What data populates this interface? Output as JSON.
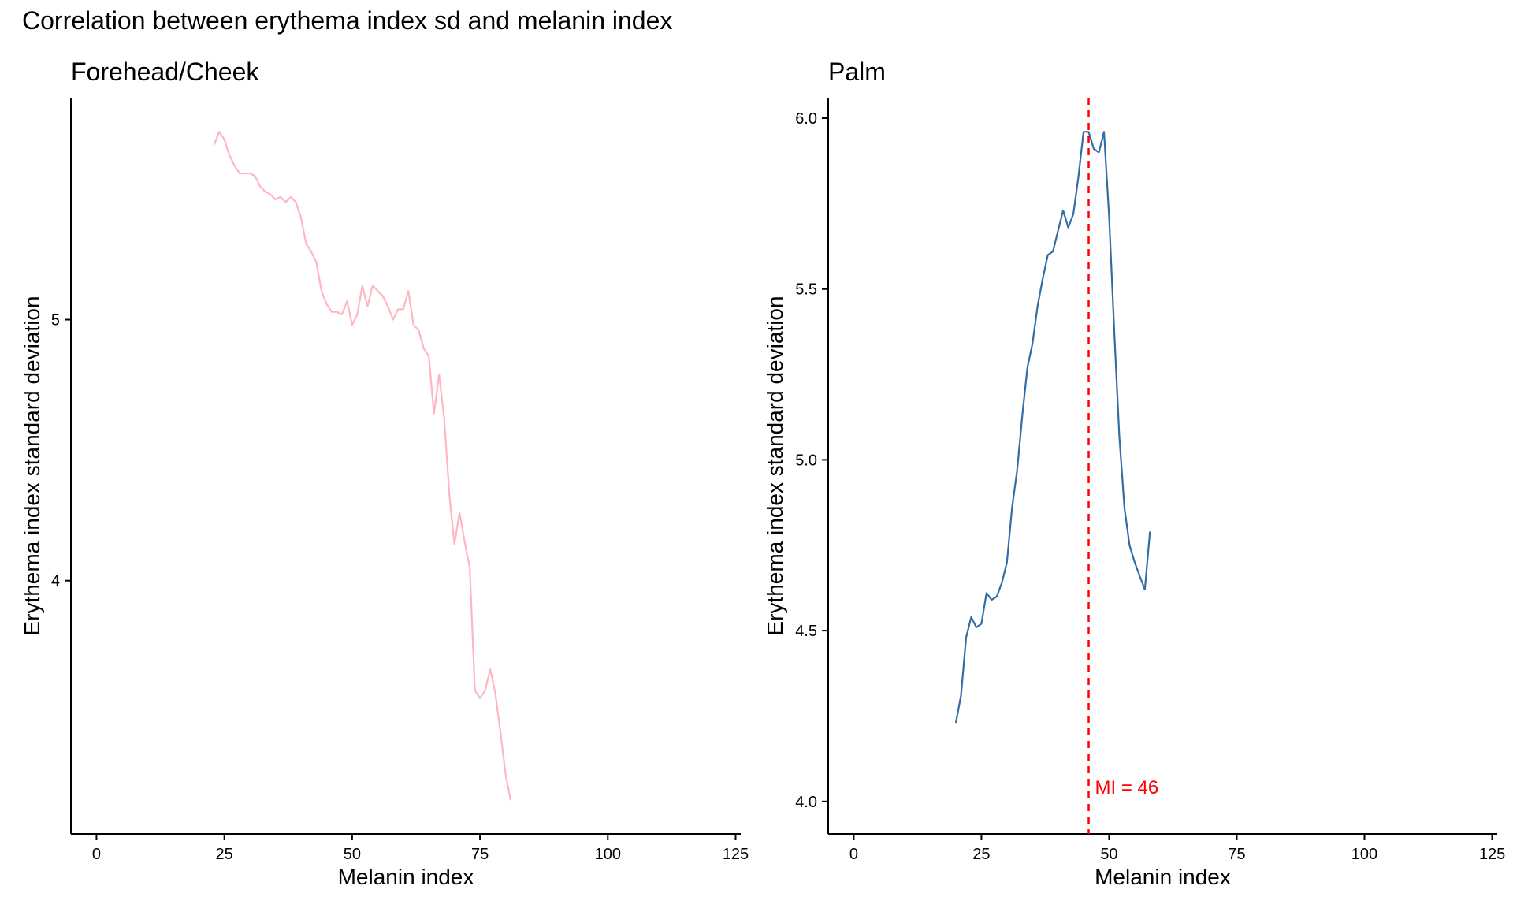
{
  "title": "Correlation between erythema index sd and melanin index",
  "chart_data": [
    {
      "type": "line",
      "title": "Forehead/Cheek",
      "xlabel": "Melanin index",
      "ylabel": "Erythema index standard deviation",
      "xlim": [
        -5,
        126
      ],
      "ylim": [
        3.03,
        5.85
      ],
      "xticks": [
        0,
        25,
        50,
        75,
        100,
        125
      ],
      "yticks": [
        4,
        5
      ],
      "grid": false,
      "legend": "none",
      "color": "#ffb6c1",
      "x": [
        23,
        24,
        25,
        26,
        27,
        28,
        29,
        30,
        31,
        32,
        33,
        34,
        35,
        36,
        37,
        38,
        39,
        40,
        41,
        42,
        43,
        44,
        45,
        46,
        47,
        48,
        49,
        50,
        51,
        52,
        53,
        54,
        55,
        56,
        57,
        58,
        59,
        60,
        61,
        62,
        63,
        64,
        65,
        66,
        67,
        68,
        69,
        70,
        71,
        72,
        73,
        74,
        75,
        76,
        77,
        78,
        79,
        80,
        81
      ],
      "y": [
        5.67,
        5.72,
        5.69,
        5.63,
        5.59,
        5.56,
        5.56,
        5.56,
        5.55,
        5.51,
        5.49,
        5.48,
        5.46,
        5.47,
        5.45,
        5.47,
        5.45,
        5.39,
        5.29,
        5.26,
        5.22,
        5.11,
        5.06,
        5.03,
        5.03,
        5.02,
        5.07,
        4.98,
        5.02,
        5.13,
        5.05,
        5.13,
        5.11,
        5.09,
        5.05,
        5.0,
        5.04,
        5.04,
        5.11,
        4.98,
        4.96,
        4.89,
        4.86,
        4.64,
        4.79,
        4.62,
        4.33,
        4.14,
        4.26,
        4.15,
        4.05,
        3.58,
        3.55,
        3.58,
        3.66,
        3.57,
        3.42,
        3.26,
        3.16
      ]
    },
    {
      "type": "line",
      "title": "Palm",
      "xlabel": "Melanin index",
      "ylabel": "Erythema index standard deviation",
      "xlim": [
        -5,
        126
      ],
      "ylim": [
        3.905,
        6.06
      ],
      "xticks": [
        0,
        25,
        50,
        75,
        100,
        125
      ],
      "yticks": [
        4.0,
        4.5,
        5.0,
        5.5,
        6.0
      ],
      "ytick_labels": [
        "4.0",
        "4.5",
        "5.0",
        "5.5",
        "6.0"
      ],
      "grid": false,
      "legend": "none",
      "color": "#336da6",
      "x": [
        20,
        21,
        22,
        23,
        24,
        25,
        26,
        27,
        28,
        29,
        30,
        31,
        32,
        33,
        34,
        35,
        36,
        37,
        38,
        39,
        40,
        41,
        42,
        43,
        44,
        45,
        46,
        47,
        48,
        49,
        50,
        51,
        52,
        53,
        54,
        55,
        56,
        57,
        58
      ],
      "y": [
        4.23,
        4.31,
        4.48,
        4.54,
        4.51,
        4.52,
        4.61,
        4.59,
        4.6,
        4.64,
        4.7,
        4.86,
        4.97,
        5.13,
        5.27,
        5.34,
        5.45,
        5.53,
        5.6,
        5.61,
        5.67,
        5.73,
        5.68,
        5.72,
        5.83,
        5.96,
        5.96,
        5.91,
        5.9,
        5.96,
        5.71,
        5.38,
        5.07,
        4.86,
        4.75,
        4.7,
        4.66,
        4.62,
        4.79
      ],
      "vline": {
        "x": 46,
        "color": "#ff0000",
        "label": "MI = 46"
      }
    }
  ]
}
